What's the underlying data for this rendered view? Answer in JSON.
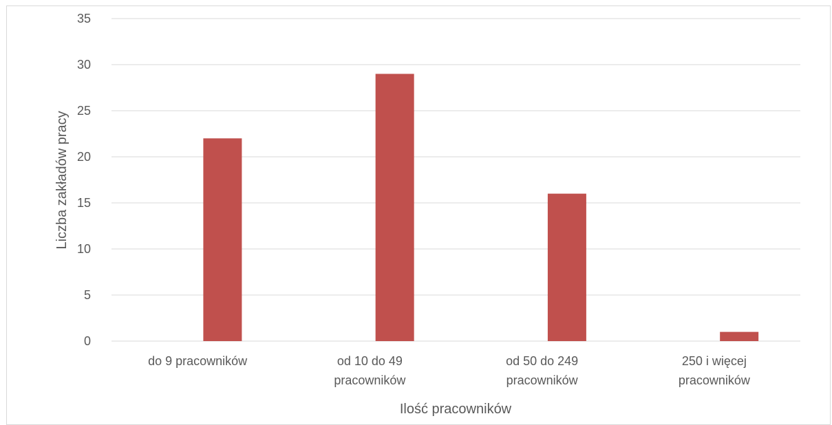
{
  "chart_data": {
    "type": "bar",
    "categories": [
      [
        "do 9 pracowników"
      ],
      [
        "od 10 do 49",
        "pracowników"
      ],
      [
        "od 50 do 249",
        "pracowników"
      ],
      [
        "250 i więcej",
        "pracowników"
      ]
    ],
    "values": [
      22,
      29,
      16,
      1
    ],
    "xlabel": "Ilość pracowników",
    "ylabel": "Liczba zakładów pracy",
    "ylim": [
      0,
      35
    ],
    "yticks": [
      0,
      5,
      10,
      15,
      20,
      25,
      30,
      35
    ],
    "bar_color": "#c0504d",
    "grid": true
  }
}
